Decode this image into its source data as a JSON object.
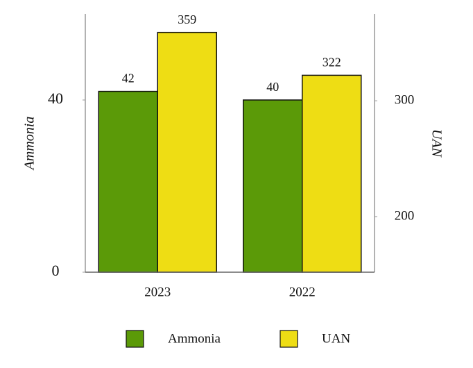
{
  "chart_data": {
    "type": "bar",
    "categories": [
      "2023",
      "2022"
    ],
    "series": [
      {
        "name": "Ammonia",
        "color": "#5b9a08",
        "values": [
          42,
          40
        ]
      },
      {
        "name": "UAN",
        "color": "#eedd14",
        "values": [
          359,
          322
        ],
        "axis": "y2"
      }
    ],
    "y_label": "Ammonia",
    "y2_label": "UAN",
    "ylim": [
      0,
      60
    ],
    "yticks": [
      0,
      40
    ],
    "y2lim": [
      152,
      375
    ],
    "y2ticks": [
      200,
      300
    ],
    "legend": "bottom"
  }
}
